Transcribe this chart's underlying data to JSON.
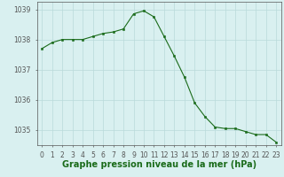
{
  "x": [
    0,
    1,
    2,
    3,
    4,
    5,
    6,
    7,
    8,
    9,
    10,
    11,
    12,
    13,
    14,
    15,
    16,
    17,
    18,
    19,
    20,
    21,
    22,
    23
  ],
  "y": [
    1037.7,
    1037.9,
    1038.0,
    1038.0,
    1038.0,
    1038.1,
    1038.2,
    1038.25,
    1038.35,
    1038.85,
    1038.95,
    1038.75,
    1038.1,
    1037.45,
    1036.75,
    1035.9,
    1035.45,
    1035.1,
    1035.05,
    1035.05,
    1034.95,
    1034.85,
    1034.85,
    1034.6
  ],
  "line_color": "#1a6b1a",
  "marker_color": "#1a6b1a",
  "bg_color": "#d9f0f0",
  "grid_color": "#b8dada",
  "axis_color": "#555555",
  "xlabel": "Graphe pression niveau de la mer (hPa)",
  "xlabel_color": "#1a6b1a",
  "ylim": [
    1034.5,
    1039.25
  ],
  "yticks": [
    1035,
    1036,
    1037,
    1038,
    1039
  ],
  "xticks": [
    0,
    1,
    2,
    3,
    4,
    5,
    6,
    7,
    8,
    9,
    10,
    11,
    12,
    13,
    14,
    15,
    16,
    17,
    18,
    19,
    20,
    21,
    22,
    23
  ],
  "tick_fontsize": 5.5,
  "xlabel_fontsize": 7.0
}
